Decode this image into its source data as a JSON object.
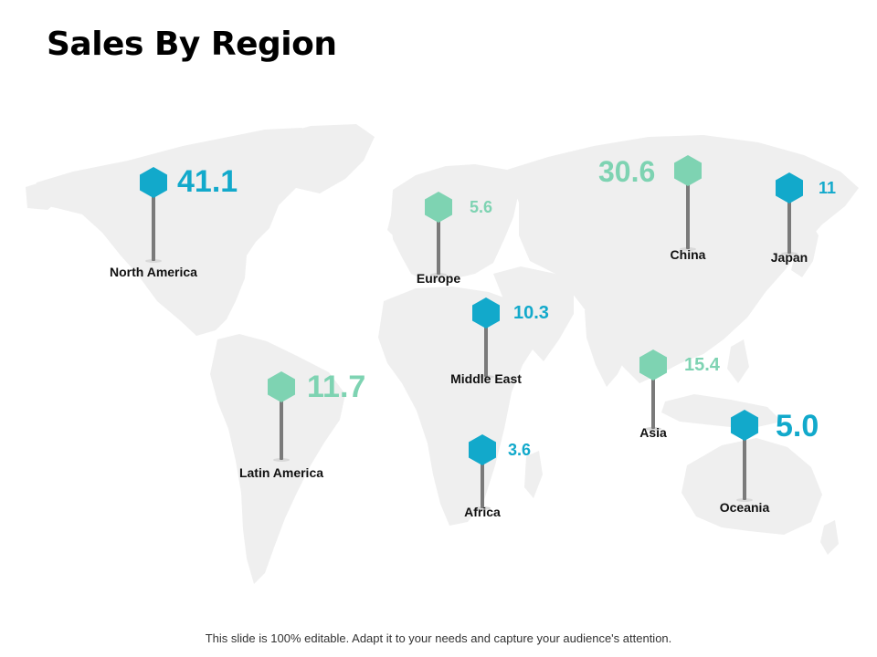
{
  "title": "Sales By Region",
  "footer": "This slide is 100% editable. Adapt it to your needs and capture your audience's attention.",
  "colors": {
    "blue": "#12A9CB",
    "green": "#7ED3B2",
    "map": "#EFEFEF",
    "stick": "#7A7A7A"
  },
  "regions": [
    {
      "name": "North America",
      "value": "41.1",
      "color": "blue"
    },
    {
      "name": "Europe",
      "value": "5.6",
      "color": "green"
    },
    {
      "name": "China",
      "value": "30.6",
      "color": "green"
    },
    {
      "name": "Japan",
      "value": "11",
      "color": "blue"
    },
    {
      "name": "Middle East",
      "value": "10.3",
      "color": "blue"
    },
    {
      "name": "Latin America",
      "value": "11.7",
      "color": "green"
    },
    {
      "name": "Asia",
      "value": "15.4",
      "color": "green"
    },
    {
      "name": "Africa",
      "value": "3.6",
      "color": "blue"
    },
    {
      "name": "Oceania",
      "value": "5.0",
      "color": "blue"
    }
  ]
}
